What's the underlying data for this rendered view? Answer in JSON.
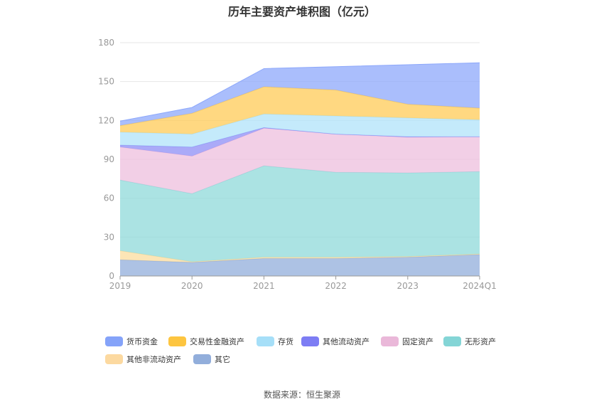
{
  "chart_data": {
    "type": "area",
    "stacked": true,
    "title": "历年主要资产堆积图（亿元）",
    "unit": "亿元",
    "categories": [
      "2019",
      "2020",
      "2021",
      "2022",
      "2023",
      "2024Q1"
    ],
    "yticks": [
      0,
      30,
      60,
      90,
      120,
      150,
      180
    ],
    "ylim": [
      0,
      180
    ],
    "grid": true,
    "legend_position": "bottom",
    "series": [
      {
        "name": "其它",
        "color": "#92aedb",
        "values": [
          12.5,
          10.5,
          13.5,
          13.5,
          14.5,
          16.5
        ]
      },
      {
        "name": "其他非流动资产",
        "color": "#fbdc9e",
        "values": [
          7,
          0.5,
          1,
          1,
          0.5,
          0.5
        ]
      },
      {
        "name": "无形资产",
        "color": "#8fd9da",
        "values": [
          54.5,
          52.5,
          70.5,
          65.5,
          64.5,
          63.5
        ]
      },
      {
        "name": "固定资产",
        "color": "#edbfdd",
        "values": [
          25.5,
          29,
          29,
          29.5,
          27.5,
          27
        ]
      },
      {
        "name": "其他流动资产",
        "color": "#8e8ef5",
        "values": [
          1.5,
          7,
          0.5,
          0,
          0.5,
          0
        ]
      },
      {
        "name": "存货",
        "color": "#b0e3fa",
        "values": [
          10,
          10,
          10.5,
          14,
          14.5,
          13
        ]
      },
      {
        "name": "交易性金融资产",
        "color": "#ffcb57",
        "values": [
          5,
          16,
          21,
          20,
          10.5,
          9
        ]
      },
      {
        "name": "货币资金",
        "color": "#8da8fb",
        "values": [
          3.5,
          4.5,
          14,
          18,
          30.5,
          35
        ]
      }
    ],
    "legend_order": [
      "货币资金",
      "交易性金融资产",
      "存货",
      "其他流动资产",
      "固定资产",
      "无形资产",
      "其他非流动资产",
      "其它"
    ],
    "legend_colors": {
      "货币资金": "#85a3f9",
      "交易性金融资产": "#fdc540",
      "存货": "#a6dff8",
      "其他流动资产": "#7d7df4",
      "固定资产": "#eab8d9",
      "无形资产": "#84d5d6",
      "其他非流动资产": "#fcd9a0",
      "其它": "#92aedb"
    }
  },
  "source_text": "数据来源：恒生聚源"
}
